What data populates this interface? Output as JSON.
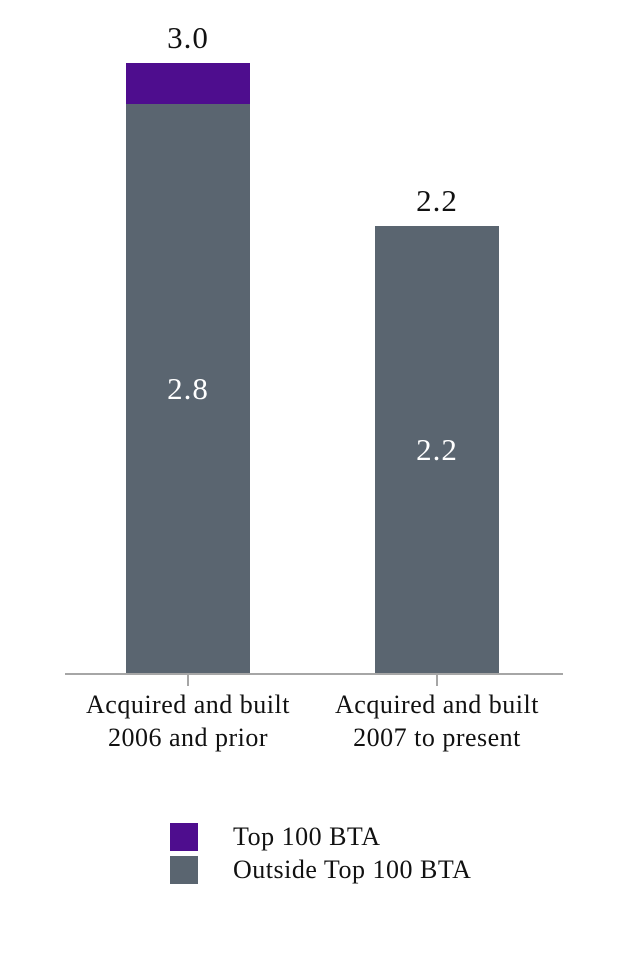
{
  "chart_data": {
    "type": "bar",
    "stacked": true,
    "orientation": "vertical",
    "grid": false,
    "legend_position": "bottom-center",
    "ylim": [
      0,
      3.0
    ],
    "categories": [
      {
        "line1": "Acquired and built",
        "line2": "2006 and prior"
      },
      {
        "line1": "Acquired and built",
        "line2": "2007 to present"
      }
    ],
    "series": [
      {
        "name": "Top 100 BTA",
        "color": "#4e0d8e",
        "values": [
          0.2,
          0
        ],
        "value_labels": [
          "",
          ""
        ]
      },
      {
        "name": "Outside Top 100 BTA",
        "color": "#5a6570",
        "values": [
          2.8,
          2.2
        ],
        "value_labels": [
          "2.8",
          "2.2"
        ]
      }
    ],
    "totals": [
      "3.0",
      "2.2"
    ]
  },
  "colors": {
    "background": "#ffffff",
    "axis_line": "#a6a6a6",
    "label_text": "#111111",
    "bar_value_text": "#ffffff"
  }
}
